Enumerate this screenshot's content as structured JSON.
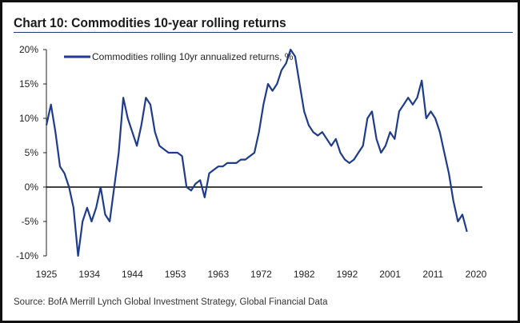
{
  "title": "Chart 10: Commodities 10-year rolling returns",
  "source": "Source:  BofA Merrill Lynch Global Investment Strategy, Global Financial Data",
  "chart_data": {
    "type": "line",
    "title": "Chart 10: Commodities 10-year rolling returns",
    "xlabel": "",
    "ylabel": "",
    "ylim": [
      -10,
      20
    ],
    "xlim": [
      1925,
      2020
    ],
    "yticks": [
      20,
      15,
      10,
      5,
      0,
      -5,
      -10
    ],
    "ytick_labels": [
      "20%",
      "15%",
      "10%",
      "5%",
      "0%",
      "-5%",
      "-10%"
    ],
    "xtick_labels": [
      "1925",
      "1934",
      "1944",
      "1953",
      "1963",
      "1972",
      "1982",
      "1992",
      "2001",
      "2011",
      "2020"
    ],
    "legend": "top-left",
    "grid": false,
    "zero_line": true,
    "series": [
      {
        "name": "Commodities rolling 10yr annualized returns, %",
        "color": "#1f3b8c",
        "x": [
          1925,
          1926,
          1927,
          1928,
          1929,
          1930,
          1931,
          1932,
          1933,
          1934,
          1935,
          1936,
          1937,
          1938,
          1939,
          1940,
          1941,
          1942,
          1943,
          1944,
          1945,
          1946,
          1947,
          1948,
          1949,
          1950,
          1951,
          1952,
          1953,
          1954,
          1955,
          1956,
          1957,
          1958,
          1959,
          1960,
          1961,
          1962,
          1963,
          1964,
          1965,
          1966,
          1967,
          1968,
          1969,
          1970,
          1971,
          1972,
          1973,
          1974,
          1975,
          1976,
          1977,
          1978,
          1979,
          1980,
          1981,
          1982,
          1983,
          1984,
          1985,
          1986,
          1987,
          1988,
          1989,
          1990,
          1991,
          1992,
          1993,
          1994,
          1995,
          1996,
          1997,
          1998,
          1999,
          2000,
          2001,
          2002,
          2003,
          2004,
          2005,
          2006,
          2007,
          2008,
          2009,
          2010,
          2011,
          2012,
          2013,
          2014,
          2015,
          2016,
          2017,
          2018
        ],
        "values": [
          9,
          12,
          8,
          3,
          2,
          0,
          -3,
          -10,
          -5,
          -3,
          -5,
          -3,
          0,
          -4,
          -5,
          0,
          5,
          13,
          10,
          8,
          6,
          9,
          13,
          12,
          8,
          6,
          5.5,
          5,
          5,
          5,
          4.5,
          0,
          -0.5,
          0.5,
          1,
          -1.5,
          2,
          2.5,
          3,
          3,
          3.5,
          3.5,
          3.5,
          4,
          4,
          4.5,
          5,
          8,
          12,
          15,
          14,
          15,
          17,
          18,
          20,
          19,
          15,
          11,
          9,
          8,
          7.5,
          8,
          7,
          6,
          7,
          5,
          4,
          3.5,
          4,
          5,
          6,
          10,
          11,
          7,
          5,
          6,
          8,
          7,
          11,
          12,
          13,
          12,
          13,
          15.5,
          10,
          11,
          10,
          8,
          5,
          2,
          -2,
          -5,
          -4,
          -6.5
        ]
      }
    ]
  }
}
